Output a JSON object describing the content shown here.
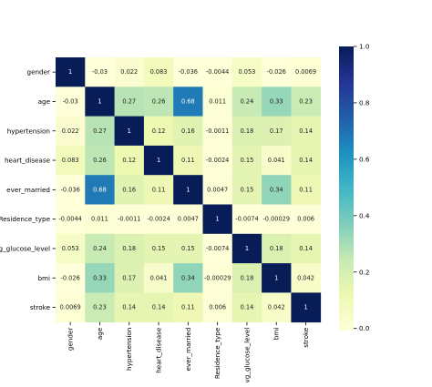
{
  "chart_data": {
    "type": "heatmap",
    "title": "",
    "xlabel": "",
    "ylabel": "",
    "variables": [
      "gender",
      "age",
      "hypertension",
      "heart_disease",
      "ever_married",
      "Residence_type",
      "avg_glucose_level",
      "bmi",
      "stroke"
    ],
    "matrix": [
      [
        1,
        -0.03,
        0.022,
        0.083,
        -0.036,
        -0.0044,
        0.053,
        -0.026,
        0.0069
      ],
      [
        -0.03,
        1,
        0.27,
        0.26,
        0.68,
        0.011,
        0.24,
        0.33,
        0.23
      ],
      [
        0.022,
        0.27,
        1,
        0.12,
        0.16,
        -0.0011,
        0.18,
        0.17,
        0.14
      ],
      [
        0.083,
        0.26,
        0.12,
        1,
        0.11,
        -0.0024,
        0.15,
        0.041,
        0.14
      ],
      [
        -0.036,
        0.68,
        0.16,
        0.11,
        1,
        0.0047,
        0.15,
        0.34,
        0.11
      ],
      [
        -0.0044,
        0.011,
        -0.0011,
        -0.0024,
        0.0047,
        1,
        -0.0074,
        -0.00029,
        0.006
      ],
      [
        0.053,
        0.24,
        0.18,
        0.15,
        0.15,
        -0.0074,
        1,
        0.18,
        0.14
      ],
      [
        -0.026,
        0.33,
        0.17,
        0.041,
        0.34,
        -0.00029,
        0.18,
        1,
        0.042
      ],
      [
        0.0069,
        0.23,
        0.14,
        0.14,
        0.11,
        0.006,
        0.14,
        0.042,
        1
      ]
    ],
    "cell_labels": [
      [
        "1",
        "-0.03",
        "0.022",
        "0.083",
        "-0.036",
        "-0.0044",
        "0.053",
        "-0.026",
        "0.0069"
      ],
      [
        "-0.03",
        "1",
        "0.27",
        "0.26",
        "0.68",
        "0.011",
        "0.24",
        "0.33",
        "0.23"
      ],
      [
        "0.022",
        "0.27",
        "1",
        "0.12",
        "0.16",
        "-0.0011",
        "0.18",
        "0.17",
        "0.14"
      ],
      [
        "0.083",
        "0.26",
        "0.12",
        "1",
        "0.11",
        "-0.0024",
        "0.15",
        "0.041",
        "0.14"
      ],
      [
        "-0.036",
        "0.68",
        "0.16",
        "0.11",
        "1",
        "0.0047",
        "0.15",
        "0.34",
        "0.11"
      ],
      [
        "-0.0044",
        "0.011",
        "-0.0011",
        "-0.0024",
        "0.0047",
        "1",
        "-0.0074",
        "-0.00029",
        "0.006"
      ],
      [
        "0.053",
        "0.24",
        "0.18",
        "0.15",
        "0.15",
        "-0.0074",
        "1",
        "0.18",
        "0.14"
      ],
      [
        "-0.026",
        "0.33",
        "0.17",
        "0.041",
        "0.34",
        "-0.00029",
        "0.18",
        "1",
        "0.042"
      ],
      [
        "0.0069",
        "0.23",
        "0.14",
        "0.14",
        "0.11",
        "0.006",
        "0.14",
        "0.042",
        "1"
      ]
    ],
    "colormap": "YlGnBu",
    "vmin": -0.0074,
    "vmax": 1,
    "colorbar": {
      "ticks": [
        0.0,
        0.2,
        0.4,
        0.6,
        0.8,
        1.0
      ],
      "tick_labels": [
        "0.0",
        "0.2",
        "0.4",
        "0.6",
        "0.8",
        "1.0"
      ]
    },
    "colormap_stops": [
      "#ffffd9",
      "#edf8b1",
      "#c7e9b4",
      "#7fcdbb",
      "#41b6c4",
      "#1d91c0",
      "#225ea8",
      "#253494",
      "#081d58"
    ],
    "grid": false,
    "legend": "colorbar-right"
  }
}
